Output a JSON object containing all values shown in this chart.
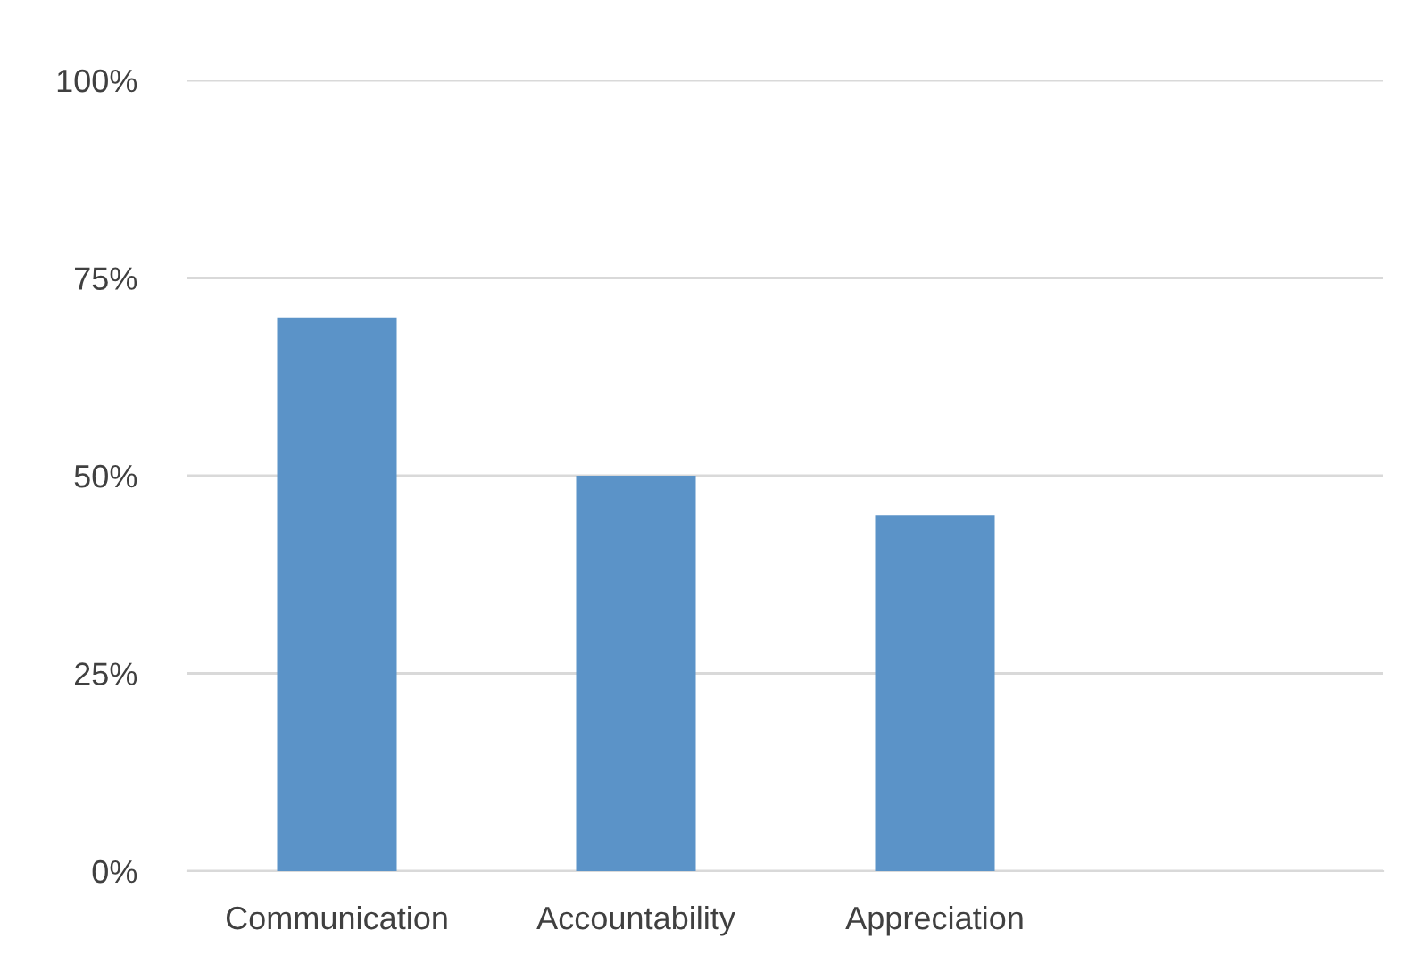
{
  "chart_data": {
    "type": "bar",
    "categories": [
      "Communication",
      "Accountability",
      "Appreciation",
      null
    ],
    "values": [
      70,
      50,
      45,
      null
    ],
    "color": "#5b93c8",
    "ylim": [
      0,
      100
    ],
    "yticks": [
      {
        "value": 0,
        "label": "0%"
      },
      {
        "value": 25,
        "label": "25%"
      },
      {
        "value": 50,
        "label": "50%"
      },
      {
        "value": 75,
        "label": "75%"
      },
      {
        "value": 100,
        "label": "100%"
      }
    ],
    "grid": "y",
    "legend": false
  }
}
